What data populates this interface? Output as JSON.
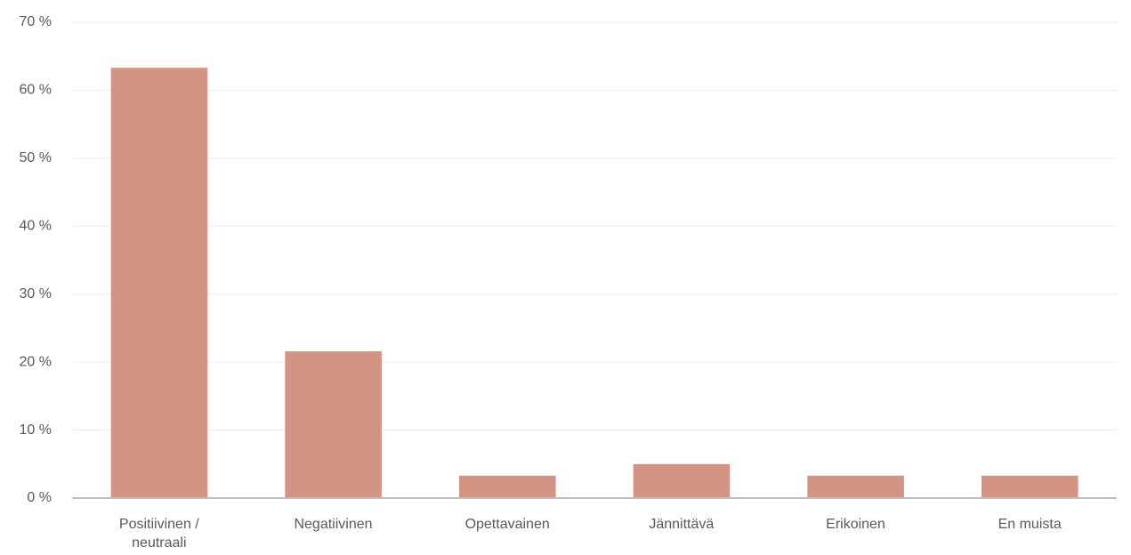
{
  "chart_data": {
    "type": "bar",
    "categories": [
      "Positiivinen / neutraali",
      "Negatiivinen",
      "Opettavainen",
      "Jännittävä",
      "Erikoinen",
      "En muista"
    ],
    "values": [
      63.3,
      21.6,
      3.3,
      5.0,
      3.3,
      3.3
    ],
    "color": "#d39484",
    "ylim": [
      0,
      70
    ],
    "yticks": [
      {
        "value": 0,
        "label": "0 %"
      },
      {
        "value": 10,
        "label": "10 %"
      },
      {
        "value": 20,
        "label": "20 %"
      },
      {
        "value": 30,
        "label": "30 %"
      },
      {
        "value": 40,
        "label": "40 %"
      },
      {
        "value": 50,
        "label": "50 %"
      },
      {
        "value": 60,
        "label": "60 %"
      },
      {
        "value": 70,
        "label": "70 %"
      }
    ],
    "grid": true
  }
}
